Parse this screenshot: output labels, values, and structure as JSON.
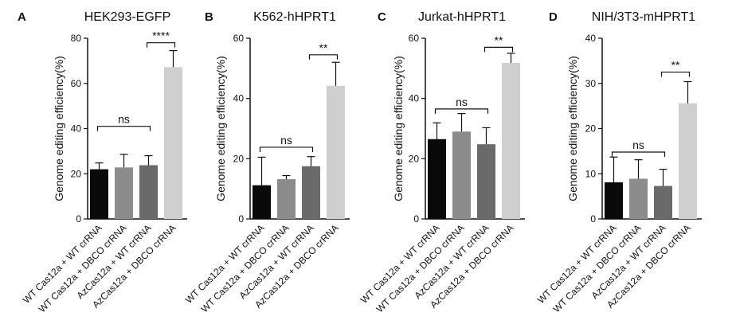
{
  "figure": {
    "categories": [
      "WT Cas12a + WT crRNA",
      "WT Cas12a + DBCO crRNA",
      "AzCas12a + WT crRNA",
      "AzCas12a + DBCO crRNA"
    ],
    "bar_colors": [
      "#0a0a0a",
      "#8c8c8c",
      "#6a6a6a",
      "#cfcfcf"
    ],
    "ylabel": "Genome editing efficiency(%)"
  },
  "chart_data": [
    {
      "panel": "A",
      "type": "bar",
      "title": "HEK293-EGFP",
      "ylim": [
        0,
        80
      ],
      "yticks": [
        0,
        20,
        40,
        60,
        80
      ],
      "values": [
        22,
        22.8,
        23.8,
        67.2
      ],
      "errors": [
        2.8,
        5.8,
        4.2,
        7.3
      ],
      "annotations": [
        {
          "label": "ns",
          "from": 0,
          "to": 2,
          "y": 41
        },
        {
          "label": "****",
          "from": 2,
          "to": 3,
          "y": 78
        }
      ]
    },
    {
      "panel": "B",
      "type": "bar",
      "title": "K562-hHPRT1",
      "ylim": [
        0,
        60
      ],
      "yticks": [
        0,
        20,
        40,
        60
      ],
      "values": [
        11.2,
        13.2,
        17.5,
        44.2
      ],
      "errors": [
        9.3,
        1.2,
        3.2,
        7.8
      ],
      "annotations": [
        {
          "label": "ns",
          "from": 0,
          "to": 2,
          "y": 23.8
        },
        {
          "label": "**",
          "from": 2,
          "to": 3,
          "y": 54.5
        }
      ]
    },
    {
      "panel": "C",
      "type": "bar",
      "title": "Jurkat-hHPRT1",
      "ylim": [
        0,
        60
      ],
      "yticks": [
        0,
        20,
        40,
        60
      ],
      "values": [
        26.5,
        29,
        24.8,
        51.8
      ],
      "errors": [
        5.4,
        6,
        5.5,
        3.2
      ],
      "annotations": [
        {
          "label": "ns",
          "from": 0,
          "to": 2,
          "y": 36.5
        },
        {
          "label": "**",
          "from": 2,
          "to": 3,
          "y": 57
        }
      ]
    },
    {
      "panel": "D",
      "type": "bar",
      "title": "NIH/3T3-mHPRT1",
      "ylim": [
        0,
        40
      ],
      "yticks": [
        0,
        10,
        20,
        30,
        40
      ],
      "values": [
        8.1,
        8.9,
        7.3,
        25.6
      ],
      "errors": [
        5.6,
        4.2,
        3.7,
        4.8
      ],
      "annotations": [
        {
          "label": "ns",
          "from": 0,
          "to": 2,
          "y": 14.8
        },
        {
          "label": "**",
          "from": 2,
          "to": 3,
          "y": 32.5
        }
      ]
    }
  ]
}
